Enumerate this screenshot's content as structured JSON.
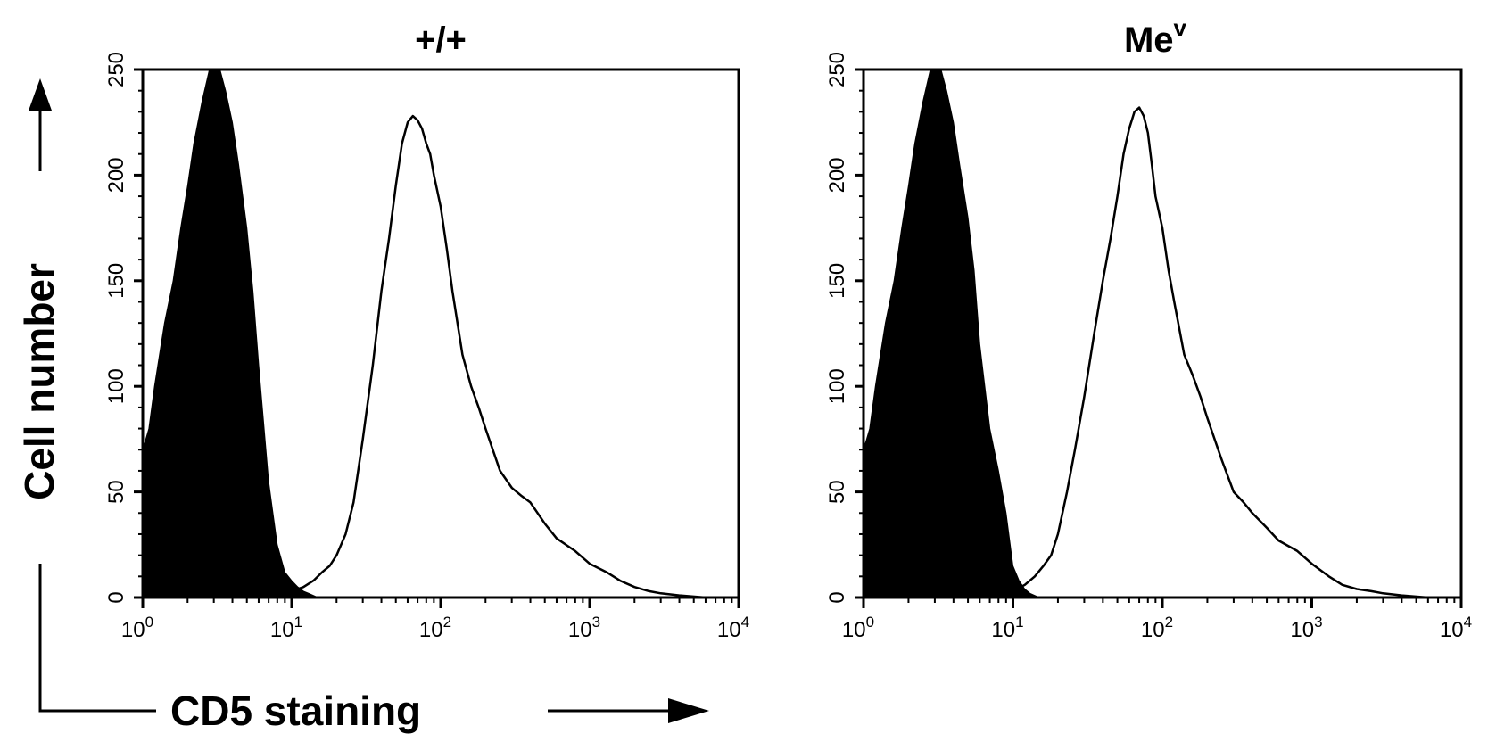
{
  "figure": {
    "ylabel": "Cell number",
    "xlabel": "CD5 staining"
  },
  "chart_data": [
    {
      "type": "area",
      "title": "+/+",
      "xscale": "log",
      "xlim": [
        1,
        10000
      ],
      "ylim": [
        0,
        250
      ],
      "xticks": [
        {
          "base": "10",
          "exp": "0"
        },
        {
          "base": "10",
          "exp": "1"
        },
        {
          "base": "10",
          "exp": "2"
        },
        {
          "base": "10",
          "exp": "3"
        },
        {
          "base": "10",
          "exp": "4"
        }
      ],
      "yticks": [
        "0",
        "50",
        "100",
        "150",
        "200",
        "250"
      ],
      "grid": false,
      "series": [
        {
          "style": "filled",
          "x": [
            1,
            1.1,
            1.2,
            1.4,
            1.6,
            1.8,
            2.0,
            2.2,
            2.5,
            2.8,
            3.0,
            3.3,
            3.6,
            4.0,
            4.4,
            5.0,
            5.5,
            6.0,
            7.0,
            8.0,
            9.0,
            10.0,
            11.0,
            12.0,
            13.0,
            15.0
          ],
          "y": [
            70,
            80,
            100,
            130,
            150,
            175,
            195,
            215,
            235,
            250,
            255,
            250,
            240,
            225,
            205,
            175,
            145,
            110,
            55,
            25,
            12,
            8,
            5,
            3,
            2,
            0
          ]
        },
        {
          "style": "outline",
          "x": [
            8,
            10,
            12,
            14,
            16,
            18,
            20,
            23,
            26,
            30,
            35,
            40,
            45,
            50,
            55,
            60,
            65,
            70,
            75,
            80,
            85,
            90,
            100,
            110,
            120,
            140,
            160,
            180,
            200,
            250,
            300,
            350,
            400,
            500,
            600,
            800,
            1000,
            1300,
            1600,
            2000,
            2500,
            3000,
            4000,
            6000,
            10000
          ],
          "y": [
            1,
            3,
            5,
            8,
            12,
            15,
            20,
            30,
            45,
            75,
            110,
            145,
            170,
            195,
            215,
            225,
            228,
            226,
            222,
            215,
            210,
            200,
            185,
            165,
            145,
            115,
            100,
            90,
            80,
            60,
            52,
            48,
            45,
            35,
            28,
            22,
            16,
            12,
            8,
            5,
            3,
            2,
            1,
            0,
            0
          ]
        }
      ]
    },
    {
      "type": "area",
      "title": "Me",
      "title_superscript": "v",
      "xscale": "log",
      "xlim": [
        1,
        10000
      ],
      "ylim": [
        0,
        250
      ],
      "xticks": [
        {
          "base": "10",
          "exp": "0"
        },
        {
          "base": "10",
          "exp": "1"
        },
        {
          "base": "10",
          "exp": "2"
        },
        {
          "base": "10",
          "exp": "3"
        },
        {
          "base": "10",
          "exp": "4"
        }
      ],
      "yticks": [
        "0",
        "50",
        "100",
        "150",
        "200",
        "250"
      ],
      "grid": false,
      "series": [
        {
          "style": "filled",
          "x": [
            1,
            1.1,
            1.2,
            1.4,
            1.6,
            1.8,
            2.0,
            2.2,
            2.5,
            2.8,
            3.0,
            3.3,
            3.6,
            4.0,
            4.4,
            5.0,
            5.5,
            6.0,
            7.0,
            8.0,
            9.0,
            10.0,
            11.0,
            12.0,
            13.0,
            15.0
          ],
          "y": [
            70,
            80,
            100,
            130,
            150,
            175,
            195,
            215,
            235,
            250,
            255,
            250,
            240,
            225,
            205,
            180,
            155,
            120,
            80,
            60,
            40,
            15,
            8,
            4,
            2,
            0
          ]
        },
        {
          "style": "outline",
          "x": [
            10,
            12,
            14,
            16,
            18,
            20,
            23,
            26,
            30,
            35,
            40,
            45,
            50,
            55,
            60,
            65,
            70,
            75,
            80,
            85,
            90,
            100,
            110,
            120,
            140,
            160,
            180,
            200,
            250,
            300,
            350,
            400,
            500,
            600,
            800,
            1000,
            1300,
            1600,
            2000,
            2500,
            3000,
            4000,
            6000,
            10000
          ],
          "y": [
            3,
            6,
            10,
            15,
            20,
            30,
            50,
            70,
            95,
            125,
            150,
            170,
            190,
            210,
            222,
            230,
            232,
            228,
            220,
            205,
            190,
            175,
            155,
            140,
            115,
            105,
            95,
            85,
            65,
            50,
            45,
            40,
            33,
            27,
            22,
            16,
            10,
            6,
            4,
            3,
            2,
            1,
            0,
            0
          ]
        }
      ]
    }
  ]
}
